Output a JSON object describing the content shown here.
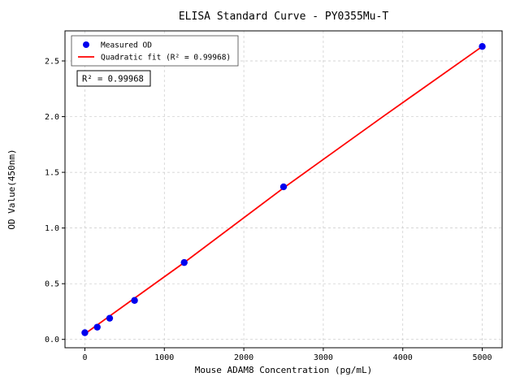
{
  "chart_data": {
    "type": "scatter",
    "title": "ELISA Standard Curve - PY0355Mu-T",
    "xlabel": "Mouse ADAM8 Concentration (pg/mL)",
    "ylabel": "OD Value(450nm)",
    "annotation": "R² = 0.99968",
    "xlim": [
      -250,
      5250
    ],
    "ylim": [
      -0.075,
      2.77
    ],
    "x_ticks": [
      0,
      1000,
      2000,
      3000,
      4000,
      5000
    ],
    "y_ticks": [
      "0.0",
      "0.5",
      "1.0",
      "1.5",
      "2.0",
      "2.5"
    ],
    "grid": true,
    "grid_color": "#c9c9c9",
    "legend_position": "upper left",
    "series": [
      {
        "name": "Measured OD",
        "kind": "scatter",
        "color": "#0000ee",
        "x": [
          0,
          156,
          312,
          625,
          1250,
          2500,
          5000
        ],
        "y": [
          0.06,
          0.11,
          0.19,
          0.35,
          0.69,
          1.37,
          2.63
        ]
      },
      {
        "name": "Quadratic fit (R² = 0.99968)",
        "kind": "line",
        "color": "#ff0000",
        "x": [
          0,
          625,
          1250,
          2500,
          3750,
          5000
        ],
        "y": [
          0.05,
          0.37,
          0.69,
          1.36,
          2.0,
          2.63
        ]
      }
    ]
  }
}
